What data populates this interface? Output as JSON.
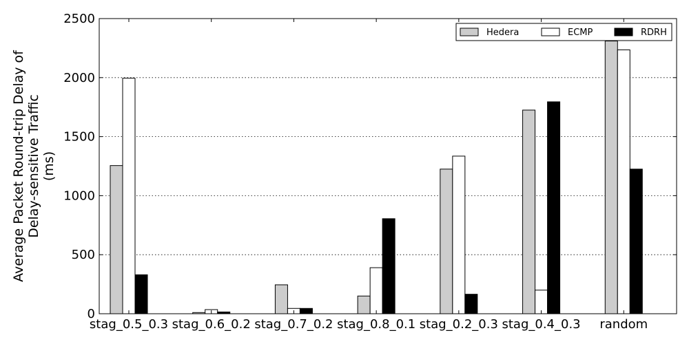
{
  "chart_data": {
    "type": "bar",
    "categories": [
      "stag_0.5_0.3",
      "stag_0.6_0.2",
      "stag_0.7_0.2",
      "stag_0.8_0.1",
      "stag_0.2_0.3",
      "stag_0.4_0.3",
      "random"
    ],
    "series": [
      {
        "name": "Hedera",
        "color": "#cccccc",
        "values": [
          1255,
          10,
          245,
          150,
          1225,
          1725,
          2310
        ]
      },
      {
        "name": "ECMP",
        "color": "#ffffff",
        "values": [
          1995,
          35,
          45,
          390,
          1335,
          200,
          2235
        ]
      },
      {
        "name": "RDRH",
        "color": "#000000",
        "values": [
          330,
          15,
          45,
          805,
          165,
          1795,
          1225
        ]
      }
    ],
    "title": "",
    "xlabel": "",
    "ylabel_lines": [
      "Average Packet Round-trip Delay of",
      "Delay-sensitive Traffic",
      "(ms)"
    ],
    "ylim": [
      0,
      2500
    ],
    "yticks": [
      0,
      500,
      1000,
      1500,
      2000,
      2500
    ],
    "grid": "horizontal dotted",
    "legend_position": "top-right"
  }
}
